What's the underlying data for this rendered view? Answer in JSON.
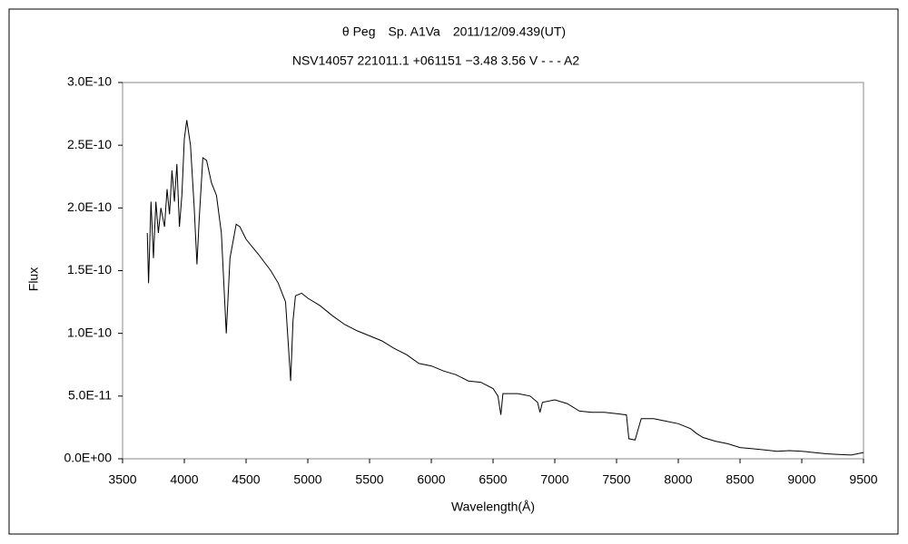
{
  "chart_data": {
    "type": "line",
    "title": "θ Peg　Sp. A1Va　2011/12/09.439(UT)",
    "subtitle": "NSV14057 221011.1 +061151 −3.48 3.56 V - - - A2",
    "x_label": "Wavelength(Å)",
    "y_label": "Flux",
    "x": [
      3700,
      3710,
      3730,
      3750,
      3770,
      3790,
      3810,
      3840,
      3860,
      3880,
      3900,
      3920,
      3940,
      3960,
      3980,
      4000,
      4020,
      4050,
      4080,
      4102,
      4120,
      4150,
      4180,
      4220,
      4260,
      4300,
      4340,
      4370,
      4420,
      4450,
      4500,
      4600,
      4700,
      4760,
      4820,
      4861,
      4880,
      4900,
      4950,
      5000,
      5100,
      5200,
      5300,
      5400,
      5500,
      5600,
      5700,
      5800,
      5900,
      6000,
      6100,
      6200,
      6300,
      6400,
      6500,
      6540,
      6563,
      6580,
      6700,
      6800,
      6860,
      6880,
      6900,
      7000,
      7100,
      7200,
      7300,
      7400,
      7500,
      7580,
      7600,
      7650,
      7700,
      7800,
      7900,
      8000,
      8100,
      8150,
      8200,
      8300,
      8400,
      8500,
      8600,
      8700,
      8800,
      8900,
      9000,
      9100,
      9200,
      9300,
      9400,
      9500
    ],
    "series": [
      {
        "name": "Flux",
        "color": "#000000",
        "values": [
          1.8e-10,
          1.4e-10,
          2.05e-10,
          1.6e-10,
          2.05e-10,
          1.8e-10,
          2e-10,
          1.85e-10,
          2.15e-10,
          1.95e-10,
          2.3e-10,
          2.05e-10,
          2.35e-10,
          1.85e-10,
          2.1e-10,
          2.55e-10,
          2.7e-10,
          2.5e-10,
          2e-10,
          1.55e-10,
          1.9e-10,
          2.4e-10,
          2.38e-10,
          2.2e-10,
          2.1e-10,
          1.8e-10,
          1e-10,
          1.6e-10,
          1.87e-10,
          1.85e-10,
          1.75e-10,
          1.63e-10,
          1.5e-10,
          1.4e-10,
          1.25e-10,
          6.2e-11,
          1.1e-10,
          1.3e-10,
          1.32e-10,
          1.28e-10,
          1.22e-10,
          1.14e-10,
          1.07e-10,
          1.02e-10,
          9.8e-11,
          9.4e-11,
          8.8e-11,
          8.3e-11,
          7.6e-11,
          7.4e-11,
          7e-11,
          6.7e-11,
          6.2e-11,
          6.1e-11,
          5.6e-11,
          5e-11,
          3.5e-11,
          5.2e-11,
          5.2e-11,
          5e-11,
          4.5e-11,
          3.7e-11,
          4.5e-11,
          4.7e-11,
          4.4e-11,
          3.8e-11,
          3.7e-11,
          3.7e-11,
          3.6e-11,
          3.5e-11,
          1.6e-11,
          1.5e-11,
          3.2e-11,
          3.2e-11,
          3e-11,
          2.8e-11,
          2.4e-11,
          2e-11,
          1.7e-11,
          1.4e-11,
          1.2e-11,
          9e-12,
          8e-12,
          7e-12,
          6e-12,
          6.5e-12,
          6e-12,
          5e-12,
          4e-12,
          3.5e-12,
          3e-12,
          5e-12
        ]
      }
    ],
    "xlim": [
      3500,
      9500
    ],
    "xticks": [
      3500,
      4000,
      4500,
      5000,
      5500,
      6000,
      6500,
      7000,
      7500,
      8000,
      8500,
      9000,
      9500
    ],
    "ylim": [
      0,
      3e-10
    ],
    "yticks": [
      {
        "value": 0,
        "label": "0.0E+00"
      },
      {
        "value": 5e-11,
        "label": "5.0E-11"
      },
      {
        "value": 1e-10,
        "label": "1.0E-10"
      },
      {
        "value": 1.5e-10,
        "label": "1.5E-10"
      },
      {
        "value": 2e-10,
        "label": "2.0E-10"
      },
      {
        "value": 2.5e-10,
        "label": "2.5E-10"
      },
      {
        "value": 3e-10,
        "label": "3.0E-10"
      }
    ],
    "grid": false
  }
}
